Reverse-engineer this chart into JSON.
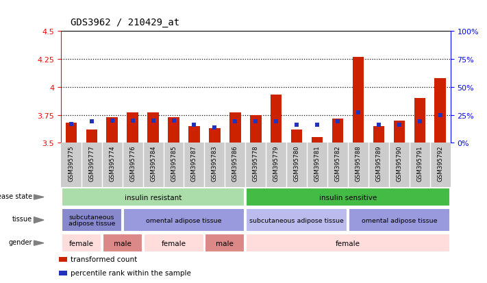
{
  "title": "GDS3962 / 210429_at",
  "samples": [
    "GSM395775",
    "GSM395777",
    "GSM395774",
    "GSM395776",
    "GSM395784",
    "GSM395785",
    "GSM395787",
    "GSM395783",
    "GSM395786",
    "GSM395778",
    "GSM395779",
    "GSM395780",
    "GSM395781",
    "GSM395782",
    "GSM395788",
    "GSM395789",
    "GSM395790",
    "GSM395791",
    "GSM395792"
  ],
  "red_values": [
    3.68,
    3.62,
    3.73,
    3.77,
    3.77,
    3.73,
    3.65,
    3.63,
    3.77,
    3.75,
    3.93,
    3.62,
    3.55,
    3.72,
    4.27,
    3.65,
    3.7,
    3.9,
    4.08
  ],
  "blue_percentiles": [
    17,
    19,
    20,
    20,
    20,
    20,
    16,
    14,
    19,
    19,
    19,
    16,
    16,
    19,
    27,
    16,
    16,
    19,
    25
  ],
  "ylim_left": [
    3.5,
    4.5
  ],
  "ylim_right": [
    0,
    100
  ],
  "yticks_left": [
    3.5,
    3.75,
    4.0,
    4.25,
    4.5
  ],
  "ytick_labels_left": [
    "3.5",
    "3.75",
    "4",
    "4.25",
    "4.5"
  ],
  "yticks_right": [
    0,
    25,
    50,
    75,
    100
  ],
  "ytick_labels_right": [
    "0%",
    "25%",
    "50%",
    "75%",
    "100%"
  ],
  "grid_values": [
    3.75,
    4.0,
    4.25
  ],
  "bar_color": "#cc2200",
  "dot_color": "#2233bb",
  "background_color": "#ffffff",
  "xtick_bg_color": "#cccccc",
  "disease_state_groups": [
    {
      "label": "insulin resistant",
      "start": 0,
      "end": 9,
      "color": "#aaddaa"
    },
    {
      "label": "insulin sensitive",
      "start": 9,
      "end": 19,
      "color": "#44bb44"
    }
  ],
  "tissue_groups": [
    {
      "label": "subcutaneous\nadipose tissue",
      "start": 0,
      "end": 3,
      "color": "#8888cc"
    },
    {
      "label": "omental adipose tissue",
      "start": 3,
      "end": 9,
      "color": "#9999dd"
    },
    {
      "label": "subcutaneous adipose tissue",
      "start": 9,
      "end": 14,
      "color": "#bbbbee"
    },
    {
      "label": "omental adipose tissue",
      "start": 14,
      "end": 19,
      "color": "#9999dd"
    }
  ],
  "gender_groups": [
    {
      "label": "female",
      "start": 0,
      "end": 2,
      "color": "#ffdddd"
    },
    {
      "label": "male",
      "start": 2,
      "end": 4,
      "color": "#dd8888"
    },
    {
      "label": "female",
      "start": 4,
      "end": 7,
      "color": "#ffdddd"
    },
    {
      "label": "male",
      "start": 7,
      "end": 9,
      "color": "#dd8888"
    },
    {
      "label": "female",
      "start": 9,
      "end": 19,
      "color": "#ffdddd"
    }
  ],
  "left_labels": [
    "disease state",
    "tissue",
    "gender"
  ],
  "legend_items": [
    {
      "color": "#cc2200",
      "label": "transformed count"
    },
    {
      "color": "#2233bb",
      "label": "percentile rank within the sample"
    }
  ]
}
